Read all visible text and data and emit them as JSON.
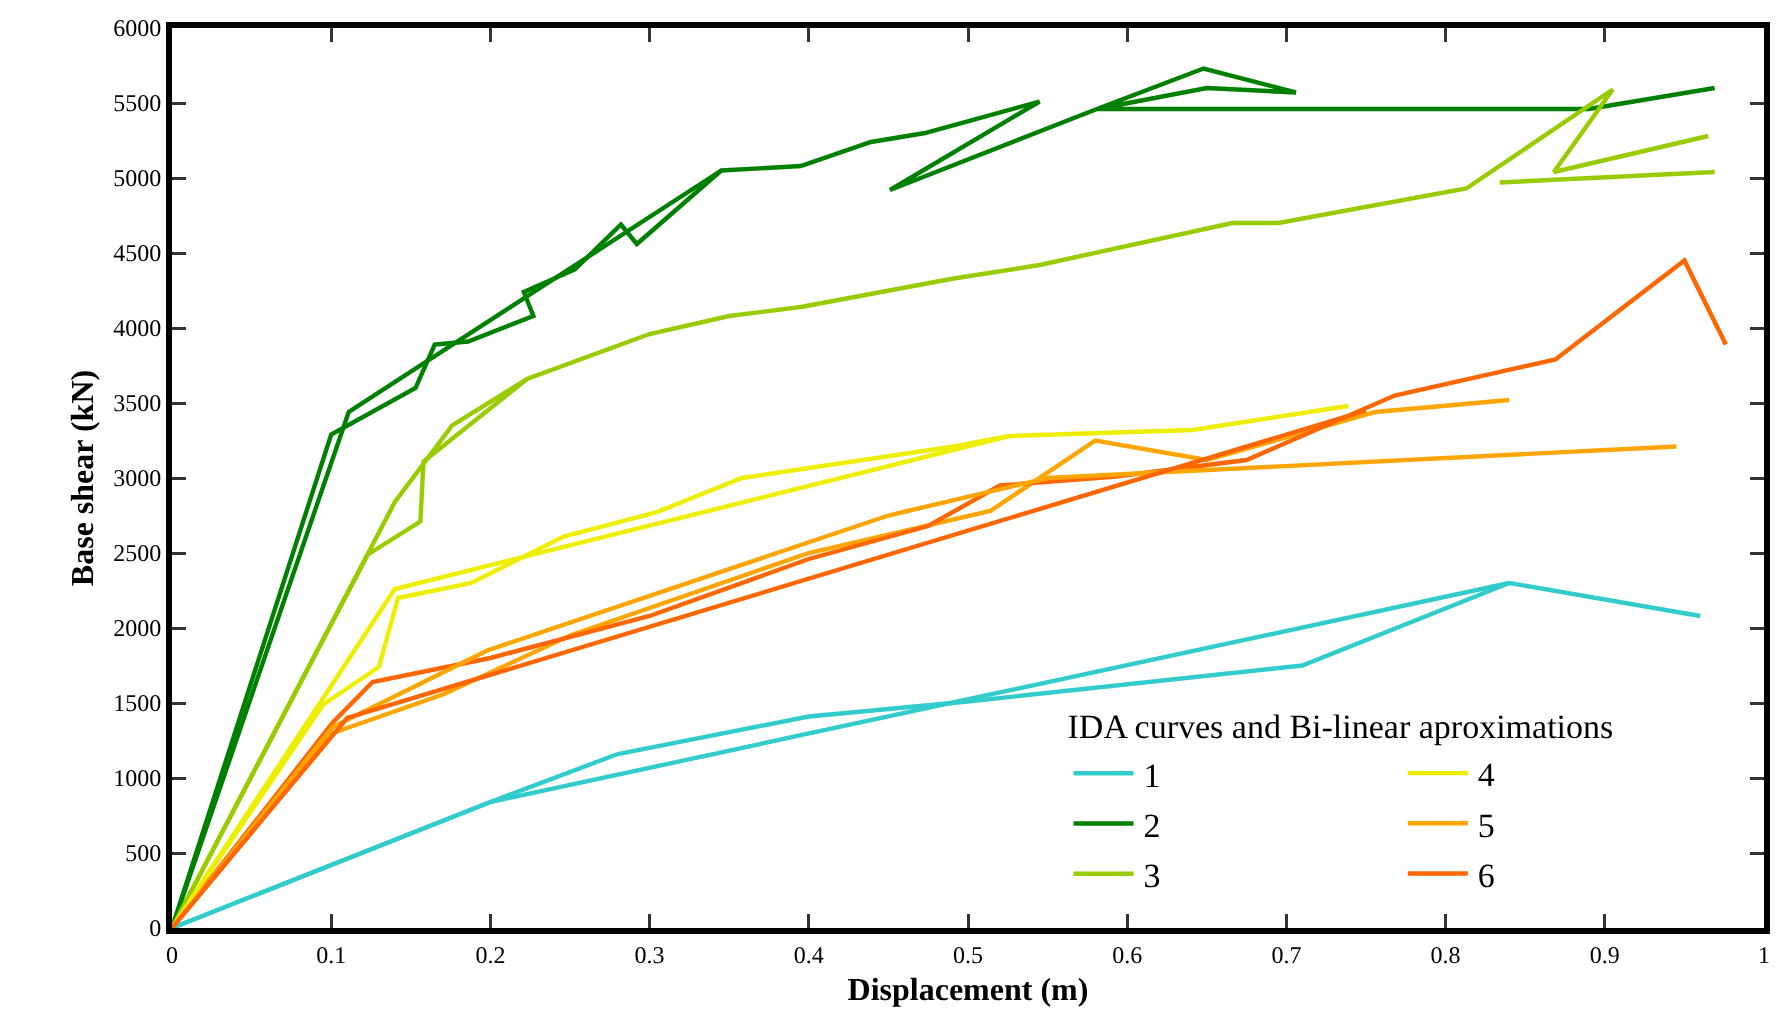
{
  "chart_data": {
    "type": "line",
    "xlabel": "Displacement (m)",
    "ylabel": "Base shear (kN)",
    "legend_title": "IDA curves and Bi-linear aproximations",
    "legend": "bottom right",
    "grid": false,
    "marker": "none",
    "line_style": "solid",
    "xlim": [
      0,
      1
    ],
    "xticks": [
      0,
      0.1,
      0.2,
      0.3,
      0.4,
      0.5,
      0.6,
      0.7,
      0.8,
      0.9,
      1
    ],
    "ylim": [
      0,
      6000
    ],
    "yticks": [
      0,
      500,
      1000,
      1500,
      2000,
      2500,
      3000,
      3500,
      4000,
      4500,
      5000,
      5500,
      6000
    ],
    "series": [
      {
        "name": "1",
        "color": "#33cccc",
        "x": [
          0,
          0.2,
          0.28,
          0.4,
          0.5,
          0.71,
          0.84,
          0.96
        ],
        "values": [
          0,
          840,
          1160,
          1410,
          1510,
          1750,
          2300,
          2080
        ]
      },
      {
        "name": "2",
        "color": "#008000",
        "x": [
          0,
          0.1,
          0.153,
          0.165,
          0.186,
          0.227,
          0.221,
          0.253,
          0.282,
          0.292,
          0.345,
          0.395,
          0.439,
          0.473,
          0.545,
          0.451,
          0.581,
          0.648,
          0.706,
          0.65,
          0.581,
          0.89,
          0.969
        ],
        "values": [
          0,
          3290,
          3600,
          3890,
          3910,
          4080,
          4240,
          4390,
          4690,
          4560,
          5050,
          5080,
          5240,
          5300,
          5510,
          4920,
          5460,
          5730,
          5570,
          5600,
          5460,
          5460,
          5600
        ]
      },
      {
        "name": "3",
        "color": "#99cc00",
        "x": [
          0,
          0.123,
          0.156,
          0.158,
          0.223,
          0.3,
          0.35,
          0.395,
          0.491,
          0.545,
          0.666,
          0.695,
          0.813,
          0.905,
          0.868,
          0.965
        ],
        "values": [
          0,
          2490,
          2710,
          3110,
          3660,
          3960,
          4080,
          4140,
          4330,
          4420,
          4700,
          4700,
          4930,
          5590,
          5040,
          5280
        ]
      },
      {
        "name": "4",
        "color": "#eeee00",
        "x": [
          0,
          0.095,
          0.13,
          0.142,
          0.188,
          0.246,
          0.304,
          0.358,
          0.491,
          0.526,
          0.641,
          0.739
        ],
        "values": [
          0,
          1490,
          1740,
          2200,
          2300,
          2610,
          2770,
          3000,
          3210,
          3280,
          3320,
          3480
        ]
      },
      {
        "name": "5",
        "color": "#ffa500",
        "x": [
          0,
          0.101,
          0.171,
          0.25,
          0.4,
          0.514,
          0.58,
          0.65,
          0.756,
          0.84
        ],
        "values": [
          0,
          1300,
          1560,
          1950,
          2500,
          2780,
          3250,
          3120,
          3440,
          3520
        ]
      },
      {
        "name": "6",
        "color": "#ff6600",
        "x": [
          0,
          0.101,
          0.126,
          0.2,
          0.3,
          0.4,
          0.475,
          0.52,
          0.593,
          0.675,
          0.768,
          0.869,
          0.95,
          0.976
        ],
        "values": [
          0,
          1370,
          1640,
          1800,
          2080,
          2460,
          2680,
          2950,
          3010,
          3120,
          3550,
          3790,
          4450,
          3890
        ]
      },
      {
        "color": "#33cccc",
        "x": [
          0,
          0.2,
          0.84
        ],
        "values": [
          0,
          840,
          2300
        ]
      },
      {
        "color": "#008000",
        "x": [
          0,
          0.111,
          0.345
        ],
        "values": [
          0,
          3440,
          5050
        ]
      },
      {
        "color": "#99cc00",
        "x": [
          0,
          0.14,
          0.176,
          0.223,
          null,
          0.834,
          0.969
        ],
        "values": [
          0,
          2840,
          3350,
          3660,
          null,
          4970,
          5040
        ]
      },
      {
        "color": "#eeee00",
        "x": [
          0,
          0.14,
          0.526
        ],
        "values": [
          0,
          2260,
          3280
        ]
      },
      {
        "color": "#ffa500",
        "x": [
          0,
          0.101,
          0.198,
          0.45,
          0.55,
          0.945
        ],
        "values": [
          0,
          1340,
          1850,
          2750,
          3000,
          3210
        ]
      },
      {
        "color": "#ff6600",
        "x": [
          0,
          0.11,
          0.75
        ],
        "values": [
          0,
          1400,
          3450
        ]
      }
    ]
  }
}
